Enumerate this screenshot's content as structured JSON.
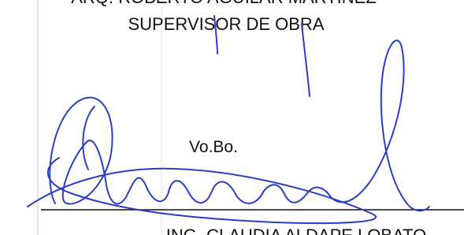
{
  "header": {
    "name": "ARQ. ROBERTO AGUILAR MARTINEZ",
    "role": "SUPERVISOR DE OBRA"
  },
  "approval": {
    "label": "Vo.Bo.",
    "name": "ING. CLAUDIA ALDAPE LOBATO"
  }
}
